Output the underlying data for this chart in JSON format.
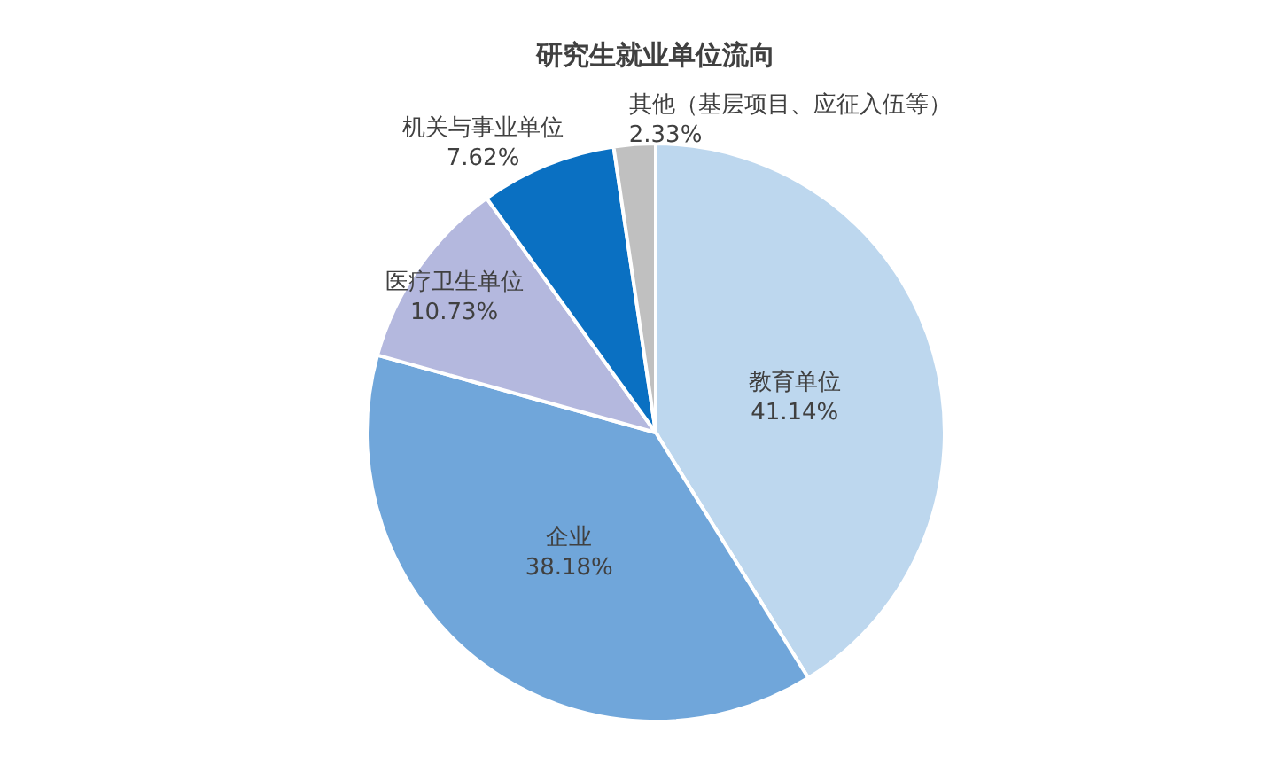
{
  "chart_data": {
    "type": "pie",
    "title": "研究生就业单位流向",
    "categories": [
      "教育单位",
      "企业",
      "医疗卫生单位",
      "机关与事业单位",
      "其他（基层项目、应征入伍等）"
    ],
    "values": [
      41.14,
      38.18,
      10.73,
      7.62,
      2.33
    ],
    "colors": [
      "#bdd7ee",
      "#70a6da",
      "#b4b8de",
      "#0a70c2",
      "#c0c0c0"
    ],
    "value_labels": [
      "41.14%",
      "38.18%",
      "10.73%",
      "7.62%",
      "2.33%"
    ]
  }
}
